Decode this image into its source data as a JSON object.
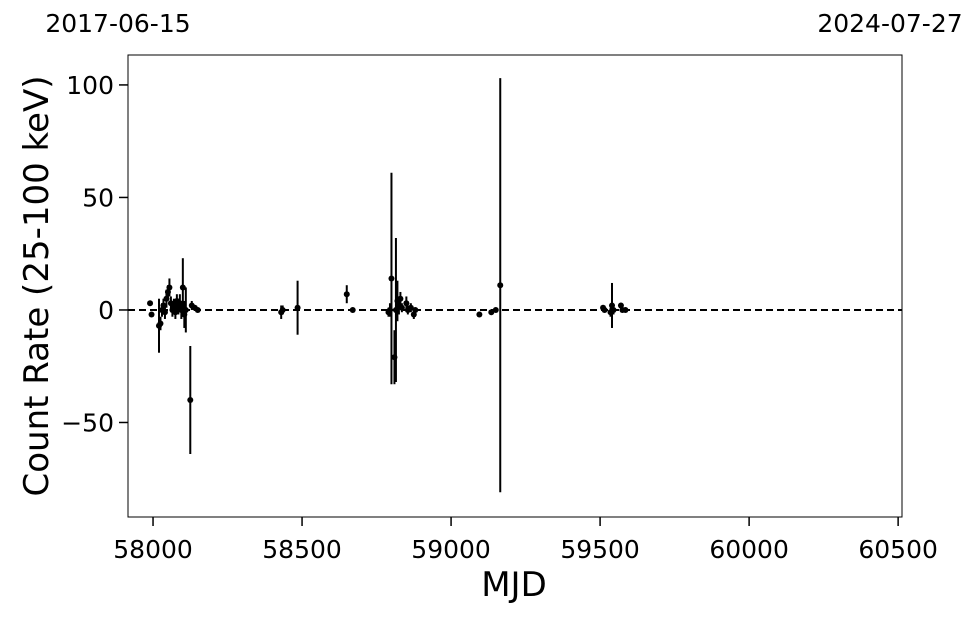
{
  "chart_data": {
    "type": "scatter",
    "top_labels": [
      "2017-06-15",
      "2024-07-27"
    ],
    "xlabel": "MJD",
    "ylabel": "Count Rate (25-100 keV)",
    "color": "#000000",
    "hline": 0,
    "xlim": [
      57916,
      60513
    ],
    "ylim": [
      -92,
      113.3
    ],
    "xticks": [
      58000,
      58500,
      59000,
      59500,
      60000,
      60500
    ],
    "yticks": [
      {
        "value": -50,
        "label": "−50"
      },
      0,
      50,
      100
    ],
    "x": [
      57990,
      57995,
      58020,
      58025,
      58030,
      58035,
      58040,
      58045,
      58050,
      58055,
      58060,
      58065,
      58070,
      58075,
      58080,
      58085,
      58090,
      58095,
      58100,
      58105,
      58110,
      58125,
      58130,
      58140,
      58150,
      58430,
      58435,
      58485,
      58650,
      58670,
      58790,
      58795,
      58800,
      58810,
      58815,
      58820,
      58825,
      58830,
      58835,
      58850,
      58855,
      58865,
      58875,
      58880,
      59095,
      59135,
      59150,
      59165,
      59510,
      59515,
      59535,
      59540,
      59545,
      59570,
      59575,
      59585
    ],
    "values": [
      3,
      -2,
      -7,
      -6,
      0,
      2,
      -1,
      5,
      8,
      10,
      3,
      0,
      2,
      -1,
      4,
      1,
      3,
      0,
      10,
      -2,
      0,
      -40,
      2,
      1,
      0,
      -1,
      0,
      1,
      7,
      0,
      -1,
      0,
      14,
      -21,
      0,
      4,
      2,
      5,
      1,
      3,
      0,
      1,
      -2,
      0,
      -2,
      -1,
      0,
      11,
      1,
      0,
      -1,
      2,
      0,
      2,
      0,
      0
    ],
    "errors": [
      1,
      1,
      12,
      3,
      3,
      3,
      3,
      4,
      3,
      4,
      3,
      3,
      3,
      3,
      3,
      3,
      4,
      4,
      13,
      6,
      10,
      24,
      2,
      1,
      1,
      3,
      2,
      12,
      4,
      1,
      2,
      3,
      47,
      12,
      32,
      9,
      4,
      3,
      2,
      3,
      2,
      2,
      2,
      1,
      1,
      1,
      1,
      92,
      1,
      1,
      2,
      10,
      2,
      1,
      1,
      1
    ]
  }
}
